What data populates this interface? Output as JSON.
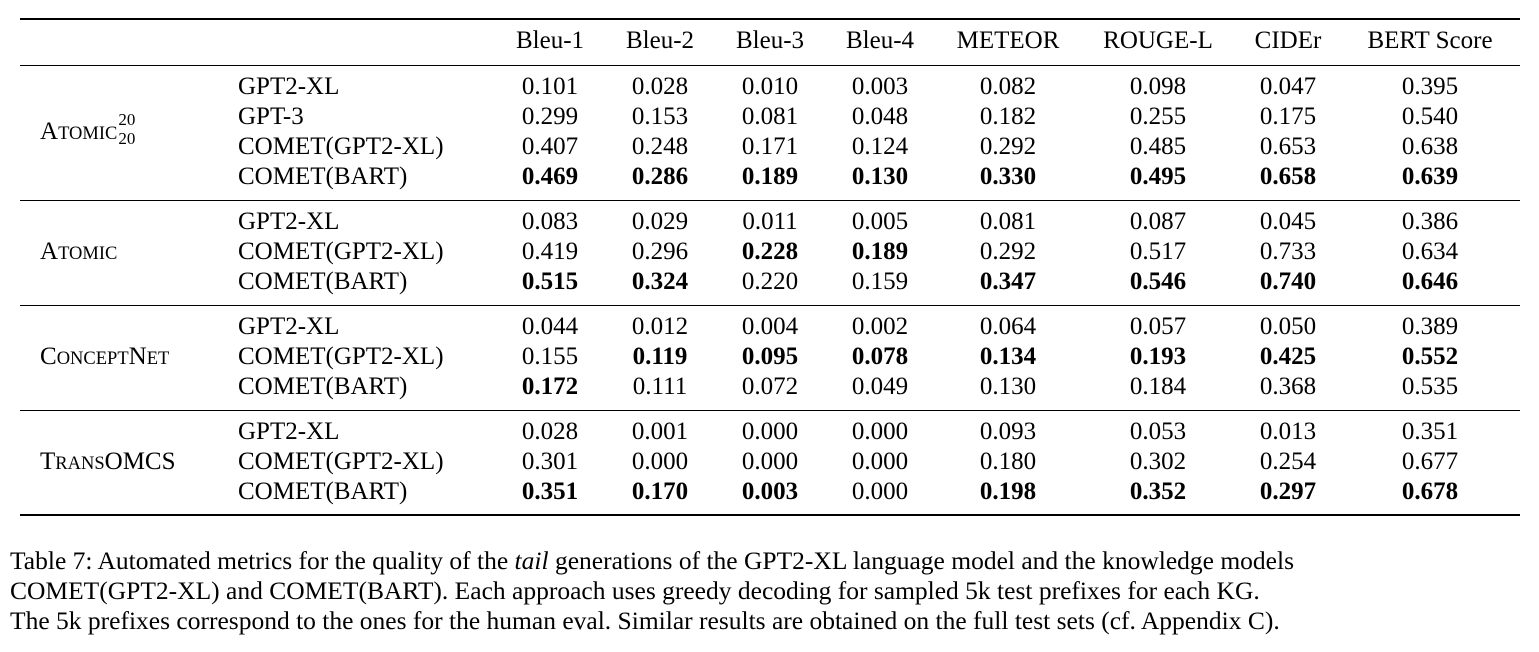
{
  "table": {
    "columns": [
      "Bleu-1",
      "Bleu-2",
      "Bleu-3",
      "Bleu-4",
      "METEOR",
      "ROUGE-L",
      "CIDEr",
      "BERT Score"
    ],
    "groups": [
      {
        "kg": {
          "first": "A",
          "rest": "TOMIC",
          "sup": "20",
          "sub": "20"
        },
        "rows": [
          {
            "model": "GPT2-XL",
            "values": [
              "0.101",
              "0.028",
              "0.010",
              "0.003",
              "0.082",
              "0.098",
              "0.047",
              "0.395"
            ],
            "bold": [
              false,
              false,
              false,
              false,
              false,
              false,
              false,
              false
            ]
          },
          {
            "model": "GPT-3",
            "values": [
              "0.299",
              "0.153",
              "0.081",
              "0.048",
              "0.182",
              "0.255",
              "0.175",
              "0.540"
            ],
            "bold": [
              false,
              false,
              false,
              false,
              false,
              false,
              false,
              false
            ]
          },
          {
            "model": "COMET(GPT2-XL)",
            "values": [
              "0.407",
              "0.248",
              "0.171",
              "0.124",
              "0.292",
              "0.485",
              "0.653",
              "0.638"
            ],
            "bold": [
              false,
              false,
              false,
              false,
              false,
              false,
              false,
              false
            ]
          },
          {
            "model": "COMET(BART)",
            "values": [
              "0.469",
              "0.286",
              "0.189",
              "0.130",
              "0.330",
              "0.495",
              "0.658",
              "0.639"
            ],
            "bold": [
              true,
              true,
              true,
              true,
              true,
              true,
              true,
              true
            ]
          }
        ]
      },
      {
        "kg": {
          "first": "A",
          "rest": "TOMIC",
          "sup": "",
          "sub": ""
        },
        "rows": [
          {
            "model": "GPT2-XL",
            "values": [
              "0.083",
              "0.029",
              "0.011",
              "0.005",
              "0.081",
              "0.087",
              "0.045",
              "0.386"
            ],
            "bold": [
              false,
              false,
              false,
              false,
              false,
              false,
              false,
              false
            ]
          },
          {
            "model": "COMET(GPT2-XL)",
            "values": [
              "0.419",
              "0.296",
              "0.228",
              "0.189",
              "0.292",
              "0.517",
              "0.733",
              "0.634"
            ],
            "bold": [
              false,
              false,
              true,
              true,
              false,
              false,
              false,
              false
            ]
          },
          {
            "model": "COMET(BART)",
            "values": [
              "0.515",
              "0.324",
              "0.220",
              "0.159",
              "0.347",
              "0.546",
              "0.740",
              "0.646"
            ],
            "bold": [
              true,
              true,
              false,
              false,
              true,
              true,
              true,
              true
            ]
          }
        ]
      },
      {
        "kg": {
          "first": "C",
          "rest": "ONCEPT",
          "first2": "N",
          "rest2": "ET",
          "sup": "",
          "sub": ""
        },
        "rows": [
          {
            "model": "GPT2-XL",
            "values": [
              "0.044",
              "0.012",
              "0.004",
              "0.002",
              "0.064",
              "0.057",
              "0.050",
              "0.389"
            ],
            "bold": [
              false,
              false,
              false,
              false,
              false,
              false,
              false,
              false
            ]
          },
          {
            "model": "COMET(GPT2-XL)",
            "values": [
              "0.155",
              "0.119",
              "0.095",
              "0.078",
              "0.134",
              "0.193",
              "0.425",
              "0.552"
            ],
            "bold": [
              false,
              true,
              true,
              true,
              true,
              true,
              true,
              true
            ]
          },
          {
            "model": "COMET(BART)",
            "values": [
              "0.172",
              "0.111",
              "0.072",
              "0.049",
              "0.130",
              "0.184",
              "0.368",
              "0.535"
            ],
            "bold": [
              true,
              false,
              false,
              false,
              false,
              false,
              false,
              false
            ]
          }
        ]
      },
      {
        "kg": {
          "first": "T",
          "rest": "RANS",
          "first2": "OMCS",
          "rest2": "",
          "sup": "",
          "sub": ""
        },
        "rows": [
          {
            "model": "GPT2-XL",
            "values": [
              "0.028",
              "0.001",
              "0.000",
              "0.000",
              "0.093",
              "0.053",
              "0.013",
              "0.351"
            ],
            "bold": [
              false,
              false,
              false,
              false,
              false,
              false,
              false,
              false
            ]
          },
          {
            "model": "COMET(GPT2-XL)",
            "values": [
              "0.301",
              "0.000",
              "0.000",
              "0.000",
              "0.180",
              "0.302",
              "0.254",
              "0.677"
            ],
            "bold": [
              false,
              false,
              false,
              false,
              false,
              false,
              false,
              false
            ]
          },
          {
            "model": "COMET(BART)",
            "values": [
              "0.351",
              "0.170",
              "0.003",
              "0.000",
              "0.198",
              "0.352",
              "0.297",
              "0.678"
            ],
            "bold": [
              true,
              true,
              true,
              false,
              true,
              true,
              true,
              true
            ]
          }
        ]
      }
    ]
  },
  "caption": {
    "lines": [
      [
        "Table 7: Automated metrics for the quality of the ",
        "tail",
        " generations of the GPT2-XL language model and the knowledge models"
      ],
      [
        "COMET(GPT2-XL) and COMET(BART). Each approach uses greedy decoding for sampled 5k test prefixes for each KG."
      ],
      [
        "The 5k prefixes correspond to the ones for the human eval. Similar results are obtained on the full test sets (cf. Appendix C)."
      ]
    ]
  }
}
